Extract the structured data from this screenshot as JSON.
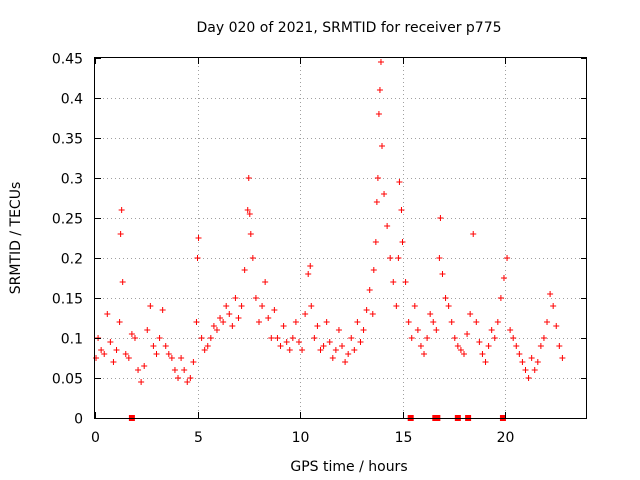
{
  "chart_data": {
    "type": "scatter",
    "title": "Day 020 of 2021, SRMTID for receiver p775",
    "xlabel": "GPS time / hours",
    "ylabel": "SRMTID / TECUs",
    "xlim": [
      0,
      24
    ],
    "ylim": [
      0,
      0.45
    ],
    "x_ticks": [
      0,
      5,
      10,
      15,
      20
    ],
    "x_tick_labels": [
      "0",
      "5",
      "10",
      "15",
      "20"
    ],
    "y_ticks": [
      0,
      0.05,
      0.1,
      0.15,
      0.2,
      0.25,
      0.3,
      0.35,
      0.4,
      0.45
    ],
    "y_tick_labels": [
      "0",
      "0.05",
      "0.1",
      "0.15",
      "0.2",
      "0.25",
      "0.3",
      "0.35",
      "0.4",
      "0.45"
    ],
    "grid": true,
    "marker": "plus",
    "series": [
      {
        "name": "SRMTID",
        "color": "#ff0000",
        "x": [
          0.05,
          0.15,
          0.3,
          0.45,
          0.6,
          0.75,
          0.9,
          1.05,
          1.2,
          1.25,
          1.3,
          1.35,
          1.5,
          1.65,
          1.8,
          1.95,
          2.1,
          2.25,
          2.4,
          2.55,
          2.7,
          2.85,
          3.0,
          3.15,
          3.3,
          3.45,
          3.6,
          3.75,
          3.9,
          4.05,
          4.2,
          4.35,
          4.5,
          4.65,
          4.8,
          4.95,
          5.0,
          5.05,
          5.2,
          5.35,
          5.5,
          5.65,
          5.8,
          5.95,
          6.1,
          6.25,
          6.4,
          6.55,
          6.7,
          6.85,
          7.0,
          7.15,
          7.3,
          7.45,
          7.5,
          7.55,
          7.6,
          7.7,
          7.85,
          8.0,
          8.15,
          8.3,
          8.45,
          8.6,
          8.75,
          8.9,
          9.05,
          9.2,
          9.35,
          9.5,
          9.65,
          9.8,
          9.95,
          10.1,
          10.25,
          10.4,
          10.5,
          10.55,
          10.7,
          10.85,
          11.0,
          11.15,
          11.3,
          11.45,
          11.6,
          11.75,
          11.9,
          12.05,
          12.2,
          12.35,
          12.5,
          12.65,
          12.8,
          12.95,
          13.1,
          13.25,
          13.4,
          13.55,
          13.6,
          13.7,
          13.75,
          13.8,
          13.85,
          13.9,
          13.95,
          14.0,
          14.1,
          14.25,
          14.4,
          14.55,
          14.7,
          14.8,
          14.85,
          14.95,
          15.0,
          15.15,
          15.3,
          15.45,
          15.6,
          15.75,
          15.9,
          16.05,
          16.2,
          16.35,
          16.5,
          16.65,
          16.8,
          16.85,
          16.95,
          17.1,
          17.25,
          17.4,
          17.55,
          17.7,
          17.85,
          18.0,
          18.15,
          18.3,
          18.45,
          18.6,
          18.75,
          18.9,
          19.05,
          19.2,
          19.35,
          19.5,
          19.65,
          19.8,
          19.95,
          20.1,
          20.25,
          20.4,
          20.55,
          20.7,
          20.85,
          21.0,
          21.15,
          21.3,
          21.45,
          21.6,
          21.75,
          21.9,
          22.05,
          22.2,
          22.35,
          22.5,
          22.65,
          22.8
        ],
        "values": [
          0.075,
          0.1,
          0.085,
          0.08,
          0.13,
          0.095,
          0.07,
          0.085,
          0.12,
          0.23,
          0.26,
          0.17,
          0.08,
          0.075,
          0.105,
          0.1,
          0.06,
          0.045,
          0.065,
          0.11,
          0.14,
          0.09,
          0.08,
          0.1,
          0.135,
          0.09,
          0.08,
          0.075,
          0.06,
          0.05,
          0.075,
          0.06,
          0.045,
          0.05,
          0.07,
          0.12,
          0.2,
          0.225,
          0.1,
          0.085,
          0.09,
          0.1,
          0.115,
          0.11,
          0.125,
          0.12,
          0.14,
          0.13,
          0.115,
          0.15,
          0.125,
          0.14,
          0.185,
          0.26,
          0.3,
          0.255,
          0.23,
          0.2,
          0.15,
          0.12,
          0.14,
          0.17,
          0.125,
          0.1,
          0.135,
          0.1,
          0.09,
          0.115,
          0.095,
          0.085,
          0.1,
          0.12,
          0.095,
          0.085,
          0.13,
          0.18,
          0.19,
          0.14,
          0.1,
          0.115,
          0.085,
          0.09,
          0.12,
          0.095,
          0.075,
          0.085,
          0.11,
          0.09,
          0.07,
          0.08,
          0.1,
          0.085,
          0.12,
          0.095,
          0.11,
          0.135,
          0.16,
          0.13,
          0.185,
          0.22,
          0.27,
          0.3,
          0.38,
          0.41,
          0.445,
          0.34,
          0.28,
          0.24,
          0.2,
          0.17,
          0.14,
          0.2,
          0.295,
          0.26,
          0.22,
          0.17,
          0.12,
          0.1,
          0.14,
          0.11,
          0.09,
          0.08,
          0.1,
          0.13,
          0.12,
          0.11,
          0.2,
          0.25,
          0.18,
          0.15,
          0.14,
          0.12,
          0.1,
          0.09,
          0.085,
          0.08,
          0.105,
          0.13,
          0.23,
          0.12,
          0.095,
          0.08,
          0.07,
          0.09,
          0.11,
          0.1,
          0.12,
          0.15,
          0.175,
          0.2,
          0.11,
          0.1,
          0.09,
          0.08,
          0.07,
          0.06,
          0.05,
          0.075,
          0.06,
          0.07,
          0.09,
          0.1,
          0.12,
          0.155,
          0.14,
          0.115,
          0.09,
          0.075
        ]
      }
    ],
    "gap_markers": {
      "color": "#ff0000",
      "x": [
        1.8,
        15.4,
        16.6,
        16.7,
        17.7,
        18.2,
        19.9
      ]
    }
  }
}
